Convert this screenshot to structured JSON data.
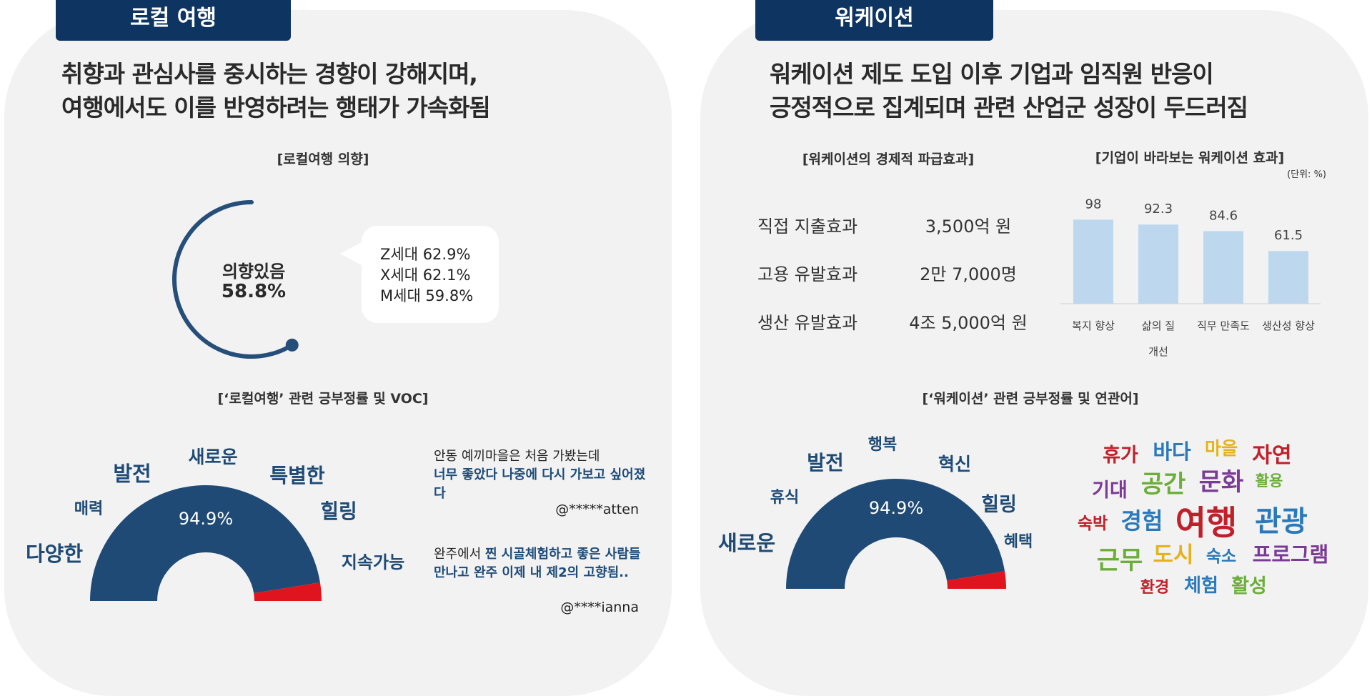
{
  "left": {
    "tab_label": "로컬 여행",
    "headline_line1": "취향과 관심사를 중시하는 경향이 강해지며,",
    "headline_line2": "여행에서도 이를 반영하려는 행태가 가속화됨",
    "intent": {
      "title": "[로컬여행 의향]",
      "label": "의향있음",
      "value_text": "58.8%",
      "value": 58.8,
      "generations": [
        "Z세대 62.9%",
        "X세대 62.1%",
        "M세대 59.8%"
      ]
    },
    "sentiment": {
      "title": "[‘로컬여행’ 관련 긍부정률 및 VOC]",
      "positive_text": "94.9%",
      "positive": 94.9,
      "words": [
        "새로운",
        "발전",
        "특별한",
        "매력",
        "힐링",
        "다양한",
        "지속가능"
      ]
    },
    "voc": [
      {
        "plain": "안동 예끼마을은 처음 가봤는데",
        "highlight": "너무 좋았다 나중에 다시 가보고 싶어졌다",
        "handle": "@*****atten"
      },
      {
        "plain": "완주에서 ",
        "highlight": "찐 시골체험하고 좋은 사람들 만나고 완주 이제 내 제2의 고향됨..",
        "handle": "@****ianna"
      }
    ]
  },
  "right": {
    "tab_label": "워케이션",
    "headline_line1": "워케이션 제도 도입 이후 기업과 임직원 반응이",
    "headline_line2": "긍정적으로 집계되며 관련 산업군 성장이 두드러짐",
    "economic": {
      "title": "[워케이션의 경제적 파급효과]",
      "rows": [
        {
          "label": "직접 지출효과",
          "value": "3,500억 원"
        },
        {
          "label": "고용 유발효과",
          "value": "2만 7,000명"
        },
        {
          "label": "생산 유발효과",
          "value": "4조 5,000억 원"
        }
      ]
    },
    "sentiment": {
      "title": "[‘워케이션’ 관련 긍부정률 및 연관어]",
      "positive_text": "94.9%",
      "positive": 94.9,
      "words": [
        "행복",
        "발전",
        "혁신",
        "휴식",
        "힐링",
        "새로운",
        "혜택"
      ]
    },
    "word_cloud": [
      {
        "text": "휴가",
        "color": "#c0202a"
      },
      {
        "text": "바다",
        "color": "#2a79bb"
      },
      {
        "text": "마을",
        "color": "#e6b21c"
      },
      {
        "text": "자연",
        "color": "#c0202a"
      },
      {
        "text": "기대",
        "color": "#7b3a96"
      },
      {
        "text": "공간",
        "color": "#6cae3a"
      },
      {
        "text": "문화",
        "color": "#7b3a96"
      },
      {
        "text": "활용",
        "color": "#6cae3a"
      },
      {
        "text": "숙박",
        "color": "#c0202a"
      },
      {
        "text": "경험",
        "color": "#2a79bb"
      },
      {
        "text": "여행",
        "color": "#c0202a"
      },
      {
        "text": "관광",
        "color": "#2a79bb"
      },
      {
        "text": "근무",
        "color": "#6cae3a"
      },
      {
        "text": "도시",
        "color": "#e6b21c"
      },
      {
        "text": "숙소",
        "color": "#2a79bb"
      },
      {
        "text": "프로그램",
        "color": "#7b3a96"
      },
      {
        "text": "환경",
        "color": "#c0202a"
      },
      {
        "text": "체험",
        "color": "#2a79bb"
      },
      {
        "text": "활성",
        "color": "#6cae3a"
      }
    ]
  },
  "chart_data": [
    {
      "type": "pie",
      "title": "[로컬여행 의향]",
      "categories": [
        "의향있음"
      ],
      "values": [
        58.8
      ],
      "annotations": [
        "Z세대 62.9%",
        "X세대 62.1%",
        "M세대 59.8%"
      ]
    },
    {
      "type": "pie",
      "title": "[‘로컬여행’ 관련 긍부정률 및 VOC]",
      "categories": [
        "",
        ""
      ],
      "values": [
        94.9,
        5.1
      ],
      "colors": [
        "#1e4a75",
        "#e0141e"
      ]
    },
    {
      "type": "table",
      "title": "[워케이션의 경제적 파급효과]",
      "rows": [
        [
          "직접 지출효과",
          "3,500억 원"
        ],
        [
          "고용 유발효과",
          "2만 7,000명"
        ],
        [
          "생산 유발효과",
          "4조 5,000억 원"
        ]
      ]
    },
    {
      "type": "bar",
      "title": "[기업이 바라보는 워케이션 효과]",
      "unit_note": "(단위: %)",
      "categories": [
        "복지 향상",
        "삶의 질 개선",
        "직무 만족도",
        "생산성 향상"
      ],
      "category_lines": [
        [
          "복지 향상"
        ],
        [
          "삶의 질",
          "개선"
        ],
        [
          "직무 만족도"
        ],
        [
          "생산성 향상"
        ]
      ],
      "values": [
        98,
        92.3,
        84.6,
        61.5
      ],
      "value_labels": [
        "98",
        "92.3",
        "84.6",
        "61.5"
      ],
      "ylim": [
        0,
        100
      ],
      "color": "#bdd7ee"
    },
    {
      "type": "pie",
      "title": "[‘워케이션’ 관련 긍부정률 및 연관어]",
      "categories": [
        "",
        ""
      ],
      "values": [
        94.9,
        5.1
      ],
      "colors": [
        "#1e4a75",
        "#e0141e"
      ]
    }
  ]
}
